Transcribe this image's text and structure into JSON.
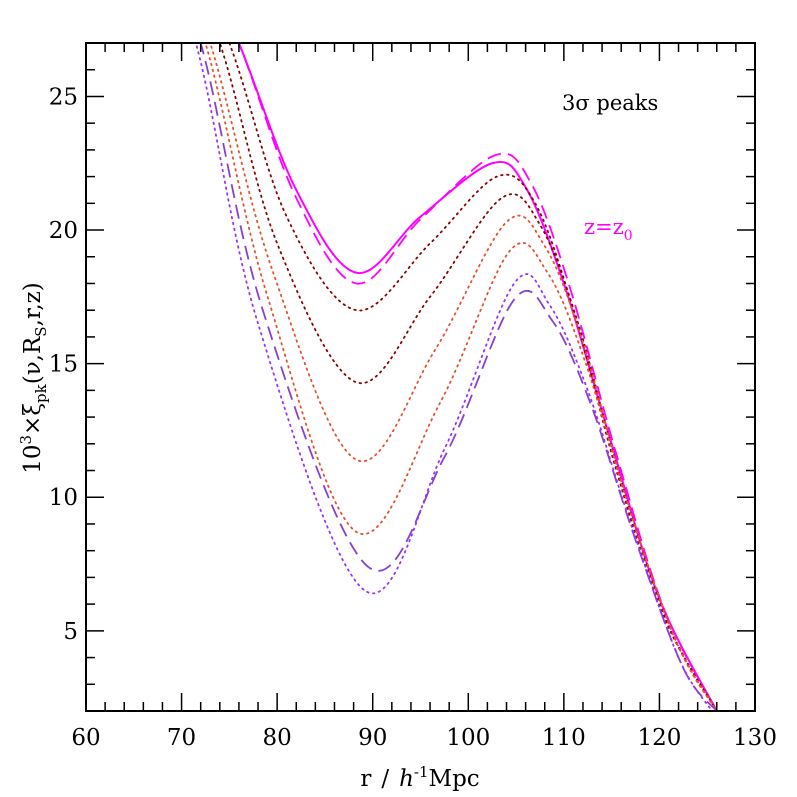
{
  "chart_data": {
    "type": "line",
    "xlabel_main": "r",
    "xlabel_sep": "/",
    "xlabel_h": "h",
    "xlabel_exp": "-1",
    "xlabel_unit": "Mpc",
    "ylabel_prefix": "10",
    "ylabel_exp": "3",
    "ylabel_times": "×ξ",
    "ylabel_sub": "pk",
    "ylabel_open": "(ν,R",
    "ylabel_s": "S",
    "ylabel_rest": ",r,z)",
    "annotation_peaks": "3σ  peaks",
    "annotation_z": "z=z",
    "annotation_z_sub": "0",
    "xlim": [
      60,
      130
    ],
    "ylim": [
      2,
      27
    ],
    "xticks": [
      "60",
      "70",
      "80",
      "90",
      "100",
      "110",
      "120",
      "130"
    ],
    "yticks": [
      "5",
      "10",
      "15",
      "20",
      "25"
    ],
    "colors": {
      "magenta": "#ff00ff",
      "darkred": "#8b0000",
      "orangered": "#e8502a",
      "purple": "#8a3fd1",
      "violet": "#9b30ff"
    },
    "series": [
      {
        "style": "solid",
        "color": "#ff00ff",
        "x": [
          69,
          76,
          82,
          88.3,
          95,
          102.5,
          106,
          110,
          115,
          120,
          126
        ],
        "y": [
          33,
          27,
          21.5,
          18.4,
          20.5,
          22.5,
          21.6,
          18.0,
          12.0,
          6.2,
          2.0
        ]
      },
      {
        "style": "dashed",
        "color": "#ff00ff",
        "x": [
          69,
          76,
          82,
          88.3,
          95,
          102.8,
          106.5,
          110.5,
          115.5,
          120.5,
          126
        ],
        "y": [
          33,
          27,
          21.2,
          18.0,
          20.4,
          22.8,
          21.8,
          18.0,
          11.6,
          5.8,
          2.0
        ]
      },
      {
        "style": "dotted",
        "color": "#8b0000",
        "x": [
          68,
          75,
          81,
          88.3,
          96,
          103,
          107,
          111,
          115.5,
          120.5,
          126
        ],
        "y": [
          33,
          27,
          20.5,
          17.0,
          19.5,
          22.0,
          21.0,
          17.0,
          11.0,
          5.5,
          2.0
        ]
      },
      {
        "style": "dotted",
        "color": "#8b0000",
        "x": [
          67.5,
          74,
          80,
          88.3,
          96,
          103.5,
          107.5,
          111.5,
          116,
          121,
          126
        ],
        "y": [
          33,
          27,
          19.5,
          14.3,
          17.5,
          21.2,
          20.2,
          16.5,
          10.6,
          5.2,
          2.0
        ]
      },
      {
        "style": "dotted",
        "color": "#e8502a",
        "x": [
          67,
          73,
          79.5,
          88.3,
          96.5,
          104,
          108,
          112,
          116.5,
          121.5,
          126
        ],
        "y": [
          33,
          27,
          18.5,
          11.4,
          15.5,
          20.3,
          19.4,
          15.8,
          10.0,
          4.8,
          2.0
        ]
      },
      {
        "style": "dotted",
        "color": "#e8502a",
        "x": [
          66.5,
          72.5,
          79,
          88.3,
          97,
          104.3,
          108.3,
          112.3,
          117,
          122,
          126
        ],
        "y": [
          33,
          27,
          17.5,
          8.7,
          13.5,
          19.2,
          18.4,
          15.0,
          9.4,
          4.4,
          2.0
        ]
      },
      {
        "style": "dashed",
        "color": "#8a3fd1",
        "x": [
          66,
          72,
          78.5,
          89.5,
          97.5,
          104.8,
          108.8,
          112.8,
          117.5,
          122.5,
          126
        ],
        "y": [
          33,
          27,
          17.0,
          7.4,
          11.5,
          17.4,
          16.6,
          13.5,
          8.4,
          3.6,
          2.0
        ]
      },
      {
        "style": "dotted",
        "color": "#9b30ff",
        "x": [
          65.5,
          71.5,
          78,
          89.2,
          97.5,
          104.8,
          108.5,
          112.5,
          117,
          122,
          125.5
        ],
        "y": [
          33,
          27,
          16.5,
          6.5,
          11.8,
          18.0,
          17.2,
          14.0,
          9.0,
          4.0,
          2.0
        ]
      }
    ]
  }
}
